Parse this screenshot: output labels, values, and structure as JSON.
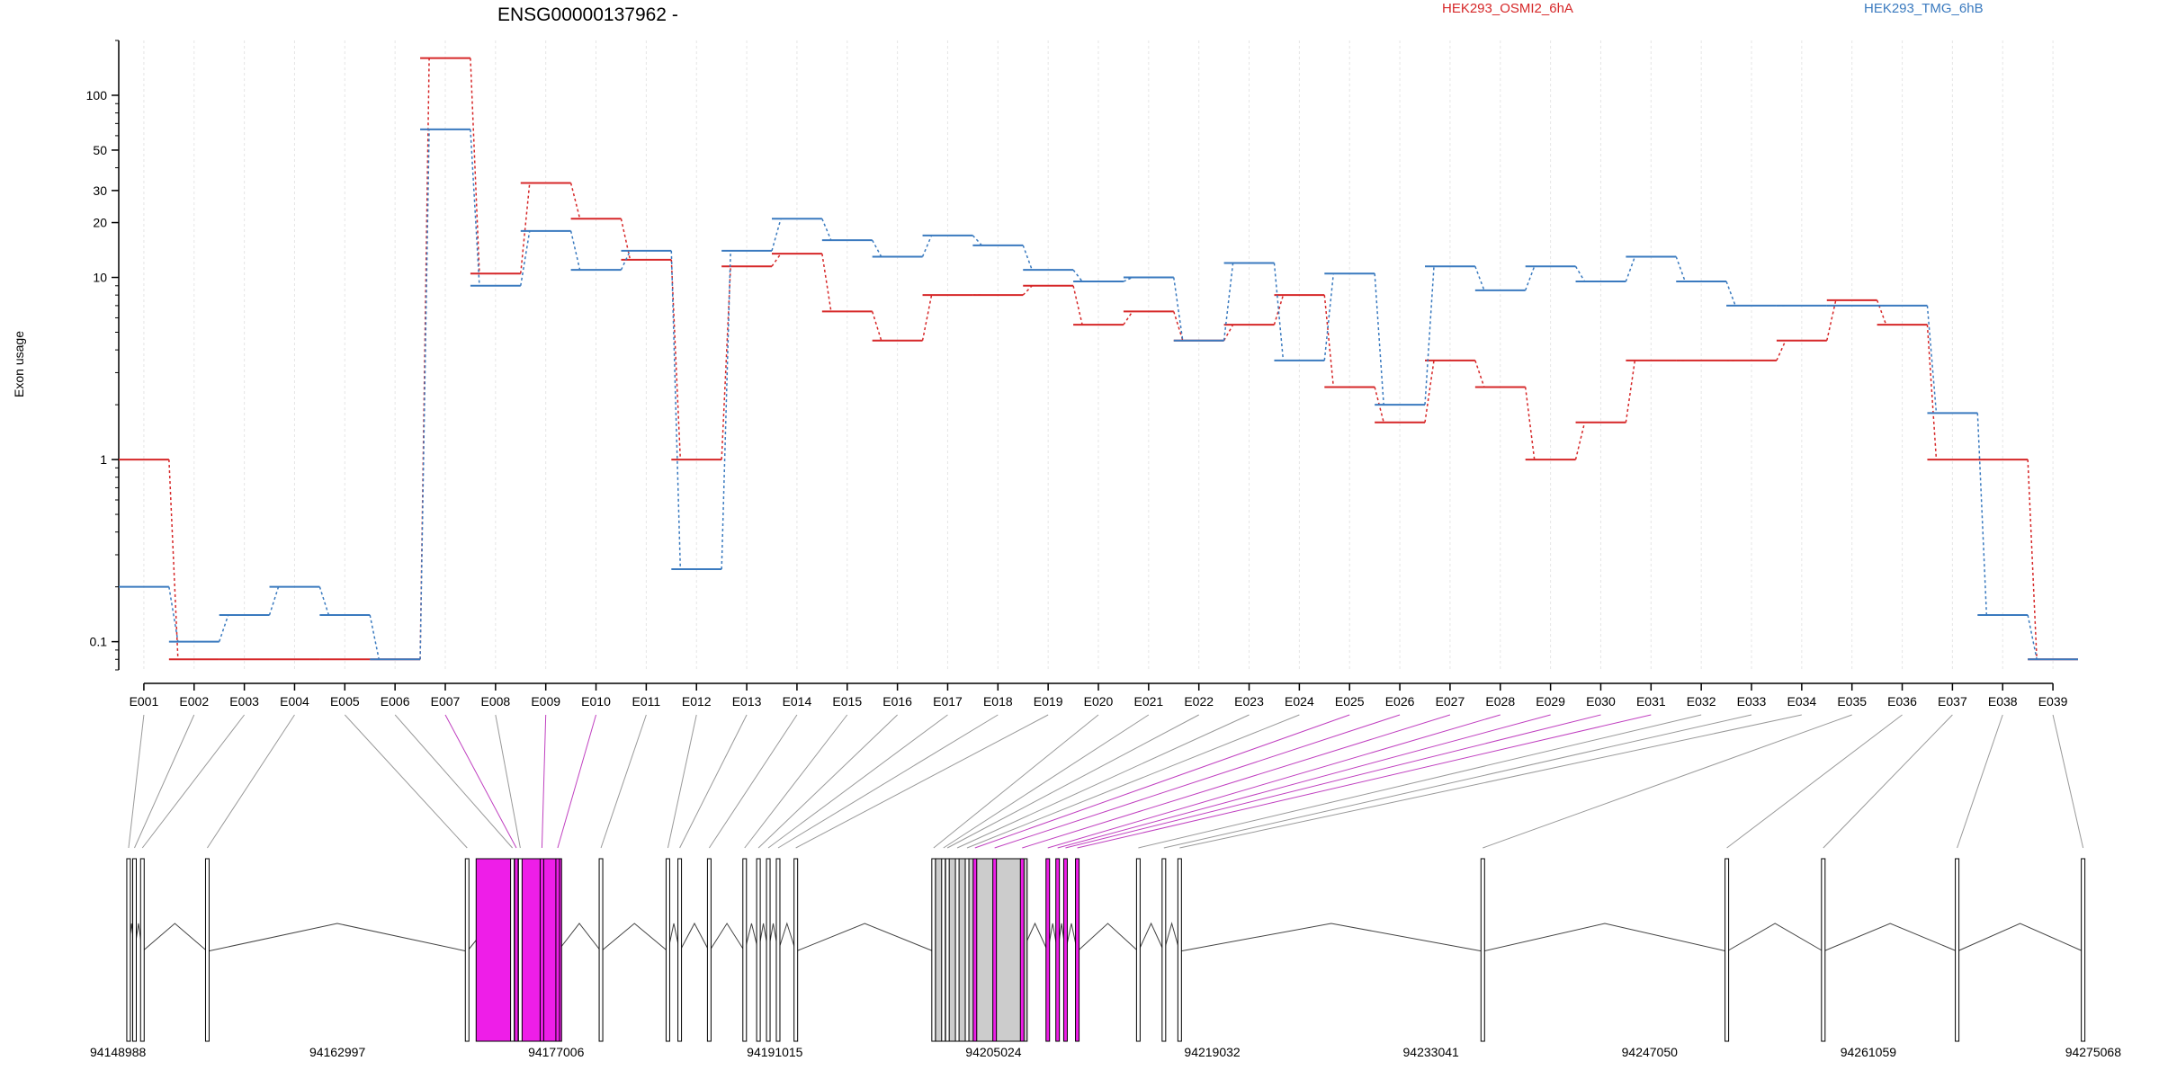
{
  "chart_data": {
    "type": "line",
    "title": "ENSG00000137962 -",
    "ylabel": "Exon usage",
    "yscale": "log",
    "ylim": [
      0.07,
      200
    ],
    "yticks": [
      0.1,
      1,
      10,
      20,
      30,
      50,
      100
    ],
    "legend_position": "top",
    "categories": [
      "E001",
      "E002",
      "E003",
      "E004",
      "E005",
      "E006",
      "E007",
      "E008",
      "E009",
      "E010",
      "E011",
      "E012",
      "E013",
      "E014",
      "E015",
      "E016",
      "E017",
      "E018",
      "E019",
      "E020",
      "E021",
      "E022",
      "E023",
      "E024",
      "E025",
      "E026",
      "E027",
      "E028",
      "E029",
      "E030",
      "E031",
      "E032",
      "E033",
      "E034",
      "E035",
      "E036",
      "E037",
      "E038",
      "E039"
    ],
    "series": [
      {
        "name": "HEK293_OSMI2_6hA",
        "color": "#d62728",
        "values": [
          1.0,
          0.08,
          0.08,
          0.08,
          0.08,
          0.08,
          160,
          10.5,
          33,
          21,
          12.5,
          1.0,
          11.5,
          13.5,
          6.5,
          4.5,
          8,
          8,
          9,
          5.5,
          6.5,
          4.5,
          5.5,
          8,
          2.5,
          1.6,
          3.5,
          2.5,
          1.0,
          1.6,
          3.5,
          3.5,
          3.5,
          4.5,
          7.5,
          5.5,
          1.0,
          1.0,
          0.08
        ]
      },
      {
        "name": "HEK293_TMG_6hB",
        "color": "#3a7abf",
        "values": [
          0.2,
          0.1,
          0.14,
          0.2,
          0.14,
          0.08,
          65,
          9,
          18,
          11,
          14,
          0.25,
          14,
          21,
          16,
          13,
          17,
          15,
          11,
          9.5,
          10,
          4.5,
          12,
          3.5,
          10.5,
          2.0,
          11.5,
          8.5,
          11.5,
          9.5,
          13,
          9.5,
          7,
          7,
          7,
          7,
          1.8,
          0.14,
          0.08
        ]
      }
    ],
    "exon_highlight": [
      false,
      false,
      false,
      false,
      false,
      false,
      true,
      false,
      true,
      true,
      false,
      false,
      false,
      false,
      false,
      false,
      false,
      false,
      false,
      false,
      false,
      false,
      false,
      false,
      true,
      true,
      true,
      true,
      true,
      true,
      true,
      false,
      false,
      false,
      false,
      false,
      false,
      false,
      false
    ],
    "highlight_color": "#ee1ee8",
    "genomic_ticks": [
      "94148988",
      "94162997",
      "94177006",
      "94191015",
      "94205024",
      "94219032",
      "94233041",
      "94247050",
      "94261059",
      "94275068"
    ]
  }
}
